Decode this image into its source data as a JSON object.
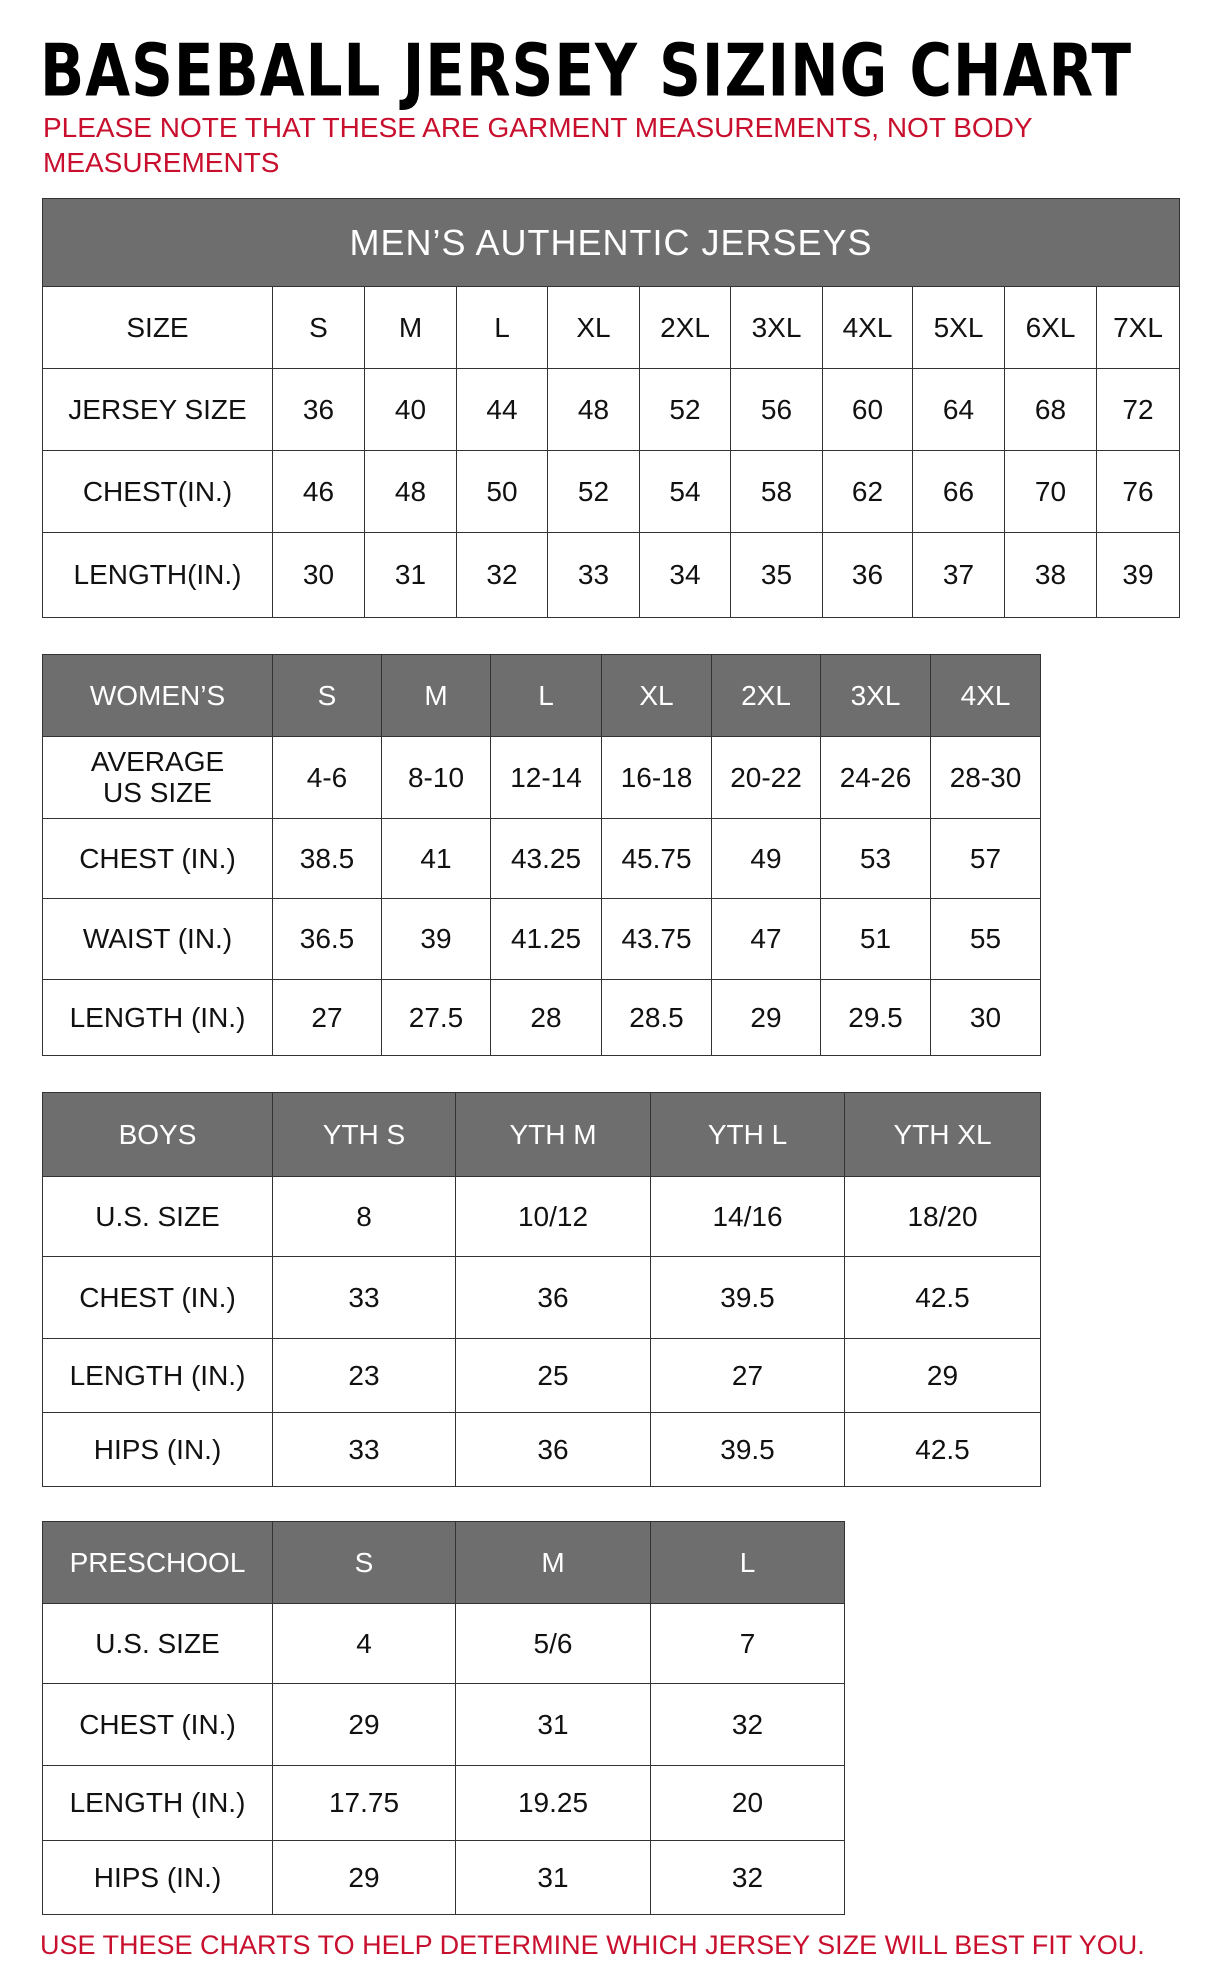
{
  "title": "BASEBALL JERSEY SIZING CHART",
  "note": "PLEASE NOTE THAT THESE ARE GARMENT MEASUREMENTS, NOT BODY MEASUREMENTS",
  "footer": "USE THESE CHARTS TO HELP DETERMINE WHICH JERSEY SIZE WILL BEST FIT YOU.",
  "colors": {
    "header_gray": "#6e6e6e",
    "note_red": "#c8102e"
  },
  "tables": [
    {
      "band": "MEN’S AUTHENTIC JERSEYS",
      "header": [
        "SIZE",
        "S",
        "M",
        "L",
        "XL",
        "2XL",
        "3XL",
        "4XL",
        "5XL",
        "6XL",
        "7XL"
      ],
      "header_dark": false,
      "rows": [
        [
          "JERSEY SIZE",
          "36",
          "40",
          "44",
          "48",
          "52",
          "56",
          "60",
          "64",
          "68",
          "72"
        ],
        [
          "CHEST(IN.)",
          "46",
          "48",
          "50",
          "52",
          "54",
          "58",
          "62",
          "66",
          "70",
          "76"
        ],
        [
          "LENGTH(IN.)",
          "30",
          "31",
          "32",
          "33",
          "34",
          "35",
          "36",
          "37",
          "38",
          "39"
        ]
      ]
    },
    {
      "header": [
        "WOMEN’S",
        "S",
        "M",
        "L",
        "XL",
        "2XL",
        "3XL",
        "4XL"
      ],
      "header_dark": true,
      "rows": [
        [
          "AVERAGE US SIZE",
          "4-6",
          "8-10",
          "12-14",
          "16-18",
          "20-22",
          "24-26",
          "28-30"
        ],
        [
          "CHEST (IN.)",
          "38.5",
          "41",
          "43.25",
          "45.75",
          "49",
          "53",
          "57"
        ],
        [
          "WAIST (IN.)",
          "36.5",
          "39",
          "41.25",
          "43.75",
          "47",
          "51",
          "55"
        ],
        [
          "LENGTH (IN.)",
          "27",
          "27.5",
          "28",
          "28.5",
          "29",
          "29.5",
          "30"
        ]
      ]
    },
    {
      "header": [
        "BOYS",
        "YTH S",
        "YTH M",
        "YTH L",
        "YTH XL"
      ],
      "header_dark": true,
      "rows": [
        [
          "U.S. SIZE",
          "8",
          "10/12",
          "14/16",
          "18/20"
        ],
        [
          "CHEST (IN.)",
          "33",
          "36",
          "39.5",
          "42.5"
        ],
        [
          "LENGTH (IN.)",
          "23",
          "25",
          "27",
          "29"
        ],
        [
          "HIPS (IN.)",
          "33",
          "36",
          "39.5",
          "42.5"
        ]
      ]
    },
    {
      "header": [
        "PRESCHOOL",
        "S",
        "M",
        "L"
      ],
      "header_dark": true,
      "rows": [
        [
          "U.S. SIZE",
          "4",
          "5/6",
          "7"
        ],
        [
          "CHEST (IN.)",
          "29",
          "31",
          "32"
        ],
        [
          "LENGTH (IN.)",
          "17.75",
          "19.25",
          "20"
        ],
        [
          "HIPS (IN.)",
          "29",
          "31",
          "32"
        ]
      ]
    }
  ]
}
